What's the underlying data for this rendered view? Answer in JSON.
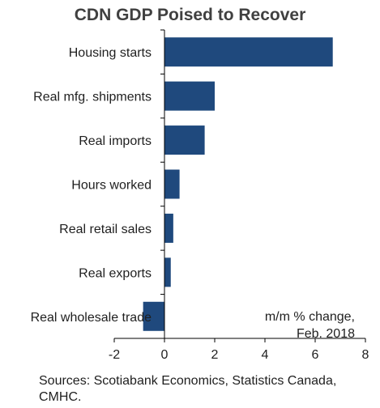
{
  "chart_data": {
    "type": "bar",
    "orientation": "horizontal",
    "title": "CDN GDP Poised to Recover",
    "categories": [
      "Housing starts",
      "Real mfg. shipments",
      "Real imports",
      "Hours worked",
      "Real retail sales",
      "Real exports",
      "Real wholesale trade"
    ],
    "values": [
      6.7,
      2.0,
      1.6,
      0.6,
      0.35,
      0.25,
      -0.85
    ],
    "xlim": [
      -2,
      8
    ],
    "xticks": [
      "-2",
      "0",
      "2",
      "4",
      "6",
      "8"
    ],
    "bar_color": "#1f497d",
    "grid": false,
    "annotation": [
      "m/m % change,",
      "Feb. 2018"
    ],
    "source": "Sources: Scotiabank Economics, Statistics Canada, CMHC."
  }
}
